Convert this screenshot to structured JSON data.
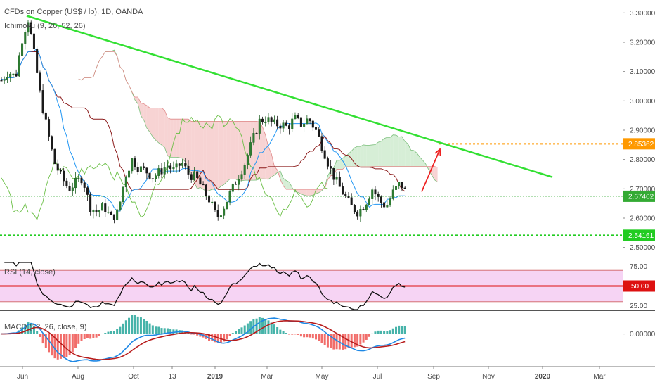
{
  "header": {
    "symbol_title": "CFDs on Copper (US$ / lb), 1D, OANDA",
    "ichimoku_label": "Ichimoku (9, 26, 52, 26)"
  },
  "panes": {
    "rsi_label": "RSI (14, close)",
    "macd_label": "MACD (12, 26, close, 9)"
  },
  "colors": {
    "trendline": "#33e033",
    "support": "#22cc22",
    "current_price": "#33aa33",
    "target": "#ff9900",
    "arrow": "#ee2222",
    "bull_candle": "#1b5e20",
    "bear_candle": "#111111",
    "kumo_bear": "#f4c4c4",
    "kumo_bull": "#c8e8c8",
    "rsi_fill": "#f3c6f0",
    "rsi_mid": "#dd1111",
    "macd_line": "#1e88e5",
    "signal_line": "#b71c1c"
  },
  "chart_data": {
    "type": "candlestick",
    "x_ticks": [
      "Jun",
      "Aug",
      "Oct",
      "13",
      "2019",
      "Mar",
      "May",
      "Jul",
      "Sep",
      "Nov",
      "2020",
      "Mar"
    ],
    "price_axis": {
      "ticks": [
        "3.30000",
        "3.20000",
        "3.10000",
        "3.00000",
        "2.90000",
        "2.80000",
        "2.70000",
        "2.60000",
        "2.50000"
      ],
      "ylim": [
        2.48,
        3.32
      ]
    },
    "price_tags": [
      {
        "value": "2.85362",
        "role": "target"
      },
      {
        "value": "2.67462",
        "role": "current"
      },
      {
        "value": "2.54161",
        "role": "support"
      }
    ],
    "trendline": {
      "start": [
        "2018-06",
        3.29
      ],
      "end": [
        "2019-12",
        2.74
      ]
    },
    "support_level": 2.54161,
    "target_level": 2.85362,
    "current_level": 2.67462,
    "price_path": [
      {
        "t": 0,
        "v": 3.07
      },
      {
        "t": 10,
        "v": 3.1
      },
      {
        "t": 20,
        "v": 3.08
      },
      {
        "t": 30,
        "v": 3.22
      },
      {
        "t": 38,
        "v": 3.28
      },
      {
        "t": 45,
        "v": 3.18
      },
      {
        "t": 55,
        "v": 3.02
      },
      {
        "t": 65,
        "v": 2.9
      },
      {
        "t": 75,
        "v": 2.79
      },
      {
        "t": 85,
        "v": 2.74
      },
      {
        "t": 95,
        "v": 2.7
      },
      {
        "t": 105,
        "v": 2.72
      },
      {
        "t": 115,
        "v": 2.74
      },
      {
        "t": 125,
        "v": 2.64
      },
      {
        "t": 135,
        "v": 2.62
      },
      {
        "t": 145,
        "v": 2.64
      },
      {
        "t": 155,
        "v": 2.6
      },
      {
        "t": 165,
        "v": 2.62
      },
      {
        "t": 175,
        "v": 2.74
      },
      {
        "t": 185,
        "v": 2.8
      },
      {
        "t": 195,
        "v": 2.77
      },
      {
        "t": 205,
        "v": 2.76
      },
      {
        "t": 215,
        "v": 2.74
      },
      {
        "t": 225,
        "v": 2.76
      },
      {
        "t": 235,
        "v": 2.78
      },
      {
        "t": 245,
        "v": 2.76
      },
      {
        "t": 255,
        "v": 2.79
      },
      {
        "t": 265,
        "v": 2.75
      },
      {
        "t": 275,
        "v": 2.74
      },
      {
        "t": 285,
        "v": 2.7
      },
      {
        "t": 295,
        "v": 2.66
      },
      {
        "t": 305,
        "v": 2.6
      },
      {
        "t": 315,
        "v": 2.64
      },
      {
        "t": 325,
        "v": 2.69
      },
      {
        "t": 335,
        "v": 2.74
      },
      {
        "t": 345,
        "v": 2.79
      },
      {
        "t": 355,
        "v": 2.86
      },
      {
        "t": 365,
        "v": 2.93
      },
      {
        "t": 375,
        "v": 2.94
      },
      {
        "t": 385,
        "v": 2.92
      },
      {
        "t": 395,
        "v": 2.92
      },
      {
        "t": 405,
        "v": 2.91
      },
      {
        "t": 415,
        "v": 2.94
      },
      {
        "t": 425,
        "v": 2.92
      },
      {
        "t": 435,
        "v": 2.94
      },
      {
        "t": 445,
        "v": 2.9
      },
      {
        "t": 455,
        "v": 2.84
      },
      {
        "t": 465,
        "v": 2.77
      },
      {
        "t": 475,
        "v": 2.72
      },
      {
        "t": 485,
        "v": 2.68
      },
      {
        "t": 495,
        "v": 2.64
      },
      {
        "t": 505,
        "v": 2.62
      },
      {
        "t": 515,
        "v": 2.65
      },
      {
        "t": 525,
        "v": 2.7
      },
      {
        "t": 535,
        "v": 2.66
      },
      {
        "t": 545,
        "v": 2.64
      },
      {
        "t": 555,
        "v": 2.69
      },
      {
        "t": 565,
        "v": 2.72
      },
      {
        "t": 575,
        "v": 2.675
      }
    ],
    "rsi": {
      "ticks": [
        "75.00",
        "50.00",
        "25.00"
      ],
      "levels": [
        70,
        50,
        30
      ],
      "ylim": [
        20,
        80
      ],
      "current": "50.00"
    },
    "macd": {
      "ticks": [
        "0.00000"
      ],
      "ylim": [
        -0.12,
        0.08
      ]
    }
  }
}
